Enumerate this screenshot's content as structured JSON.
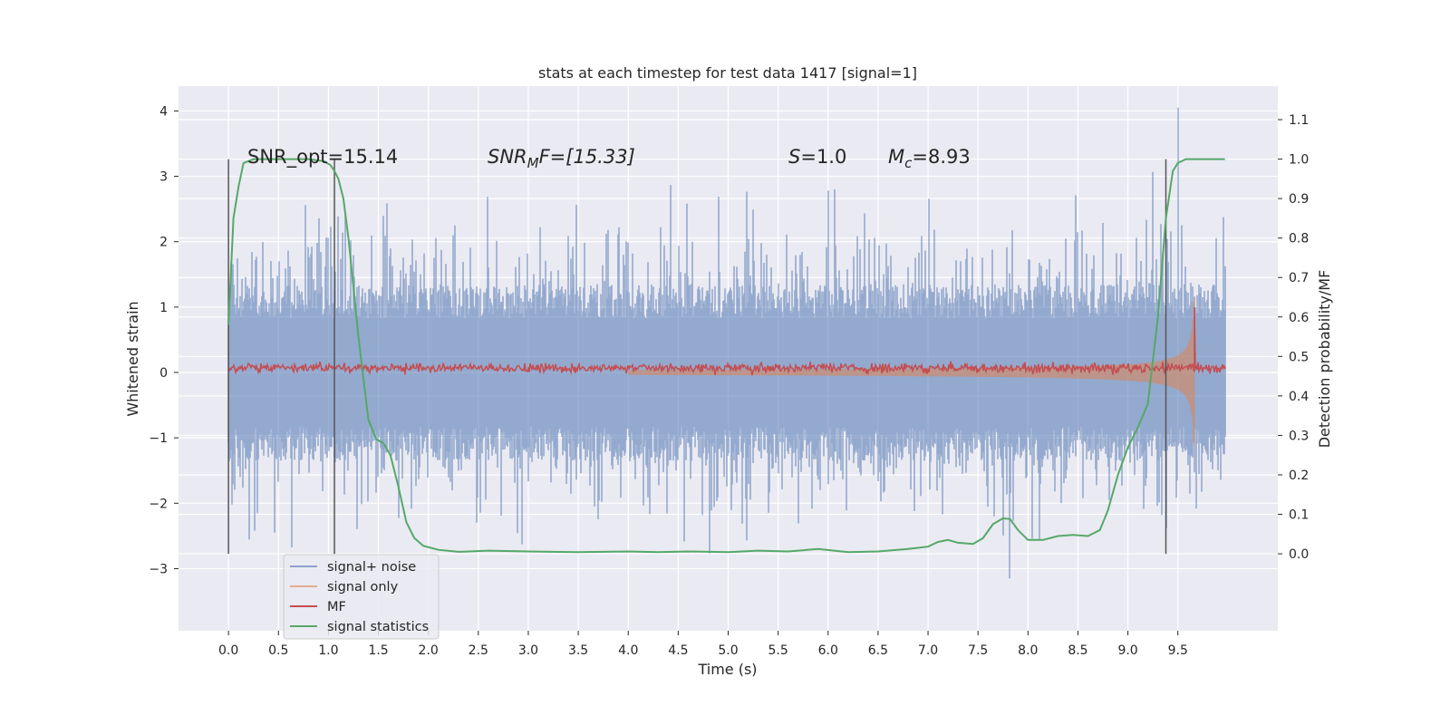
{
  "chart_data": {
    "type": "line",
    "title": "stats at each timestep for test data 1417 [signal=1]",
    "xlabel": "Time (s)",
    "ylabel_left": "Whitened strain",
    "ylabel_right": "Detection probability/MF",
    "xlim": [
      -0.5,
      10.5
    ],
    "ylim_left": [
      -3.95,
      4.38
    ],
    "ylim_right": [
      -0.195,
      1.185
    ],
    "x_ticks": [
      0.0,
      0.5,
      1.0,
      1.5,
      2.0,
      2.5,
      3.0,
      3.5,
      4.0,
      4.5,
      5.0,
      5.5,
      6.0,
      6.5,
      7.0,
      7.5,
      8.0,
      8.5,
      9.0,
      9.5
    ],
    "x_tick_labels": [
      "0.0",
      "0.5",
      "1.0",
      "1.5",
      "2.0",
      "2.5",
      "3.0",
      "3.5",
      "4.0",
      "4.5",
      "5.0",
      "5.5",
      "6.0",
      "6.5",
      "7.0",
      "7.5",
      "8.0",
      "8.5",
      "9.0",
      "9.5"
    ],
    "y_ticks_left": [
      -3,
      -2,
      -1,
      0,
      1,
      2,
      3,
      4
    ],
    "y_tick_labels_left": [
      "−3",
      "−2",
      "−1",
      "0",
      "1",
      "2",
      "3",
      "4"
    ],
    "y_ticks_right": [
      0.0,
      0.1,
      0.2,
      0.3,
      0.4,
      0.5,
      0.6,
      0.7,
      0.8,
      0.9,
      1.0,
      1.1
    ],
    "y_tick_labels_right": [
      "0.0",
      "0.1",
      "0.2",
      "0.3",
      "0.4",
      "0.5",
      "0.6",
      "0.7",
      "0.8",
      "0.9",
      "1.0",
      "1.1"
    ],
    "grid": true,
    "legend_position": "lower-left",
    "colors": {
      "background": "#eaeaf2",
      "grid": "#ffffff",
      "noise": "#4c72b0",
      "signal": "#dd8452",
      "mf": "#c44e52",
      "stat": "#55a868",
      "vline": "#555555"
    },
    "annotations": {
      "snr_opt": "SNR_opt=15.14",
      "snr_mf_math": "SNR",
      "snr_mf_sub": "M",
      "snr_mf_rest": "F=[15.33]",
      "s_math": "S",
      "s_rest": "=1.0",
      "mc_math": "M",
      "mc_sub": "c",
      "mc_rest": "=8.93"
    },
    "vertical_lines_x": [
      0.0,
      1.06,
      9.38
    ],
    "series": [
      {
        "name": "signal+ noise",
        "kind": "noise",
        "x_range": [
          0.0,
          9.97
        ],
        "typical_amplitude": 1.5,
        "max": 4.05,
        "min": -3.15
      },
      {
        "name": "signal only",
        "kind": "chirp",
        "x_range": [
          0.0,
          9.67
        ],
        "peak_amplitude": 1.4
      },
      {
        "name": "MF",
        "kind": "mf",
        "x_range": [
          0.0,
          9.97
        ],
        "level": 0.07,
        "spike_x": 9.67,
        "spike_value": 1.0
      },
      {
        "name": "signal statistics",
        "kind": "stat",
        "axis": "right",
        "x": [
          0.0,
          0.05,
          0.1,
          0.15,
          0.25,
          0.4,
          0.6,
          0.8,
          0.95,
          1.02,
          1.06,
          1.1,
          1.15,
          1.2,
          1.3,
          1.4,
          1.48,
          1.55,
          1.62,
          1.7,
          1.78,
          1.86,
          1.95,
          2.1,
          2.3,
          2.6,
          3.0,
          3.5,
          4.0,
          4.3,
          4.6,
          5.0,
          5.3,
          5.6,
          5.9,
          6.2,
          6.5,
          6.8,
          7.0,
          7.1,
          7.2,
          7.3,
          7.45,
          7.55,
          7.65,
          7.75,
          7.82,
          7.9,
          8.0,
          8.15,
          8.3,
          8.45,
          8.6,
          8.72,
          8.8,
          8.9,
          9.0,
          9.1,
          9.2,
          9.3,
          9.38,
          9.45,
          9.5,
          9.58,
          9.7,
          9.97
        ],
        "y": [
          0.58,
          0.85,
          0.93,
          0.99,
          1.0,
          1.0,
          1.0,
          1.0,
          0.995,
          0.985,
          0.97,
          0.95,
          0.9,
          0.8,
          0.55,
          0.34,
          0.29,
          0.28,
          0.25,
          0.17,
          0.08,
          0.04,
          0.02,
          0.01,
          0.005,
          0.008,
          0.006,
          0.004,
          0.006,
          0.004,
          0.006,
          0.004,
          0.008,
          0.006,
          0.012,
          0.004,
          0.006,
          0.012,
          0.018,
          0.03,
          0.035,
          0.028,
          0.025,
          0.04,
          0.075,
          0.09,
          0.088,
          0.06,
          0.035,
          0.035,
          0.045,
          0.048,
          0.045,
          0.06,
          0.11,
          0.2,
          0.27,
          0.32,
          0.38,
          0.6,
          0.85,
          0.97,
          0.99,
          1.0,
          1.0,
          1.0
        ]
      }
    ]
  }
}
